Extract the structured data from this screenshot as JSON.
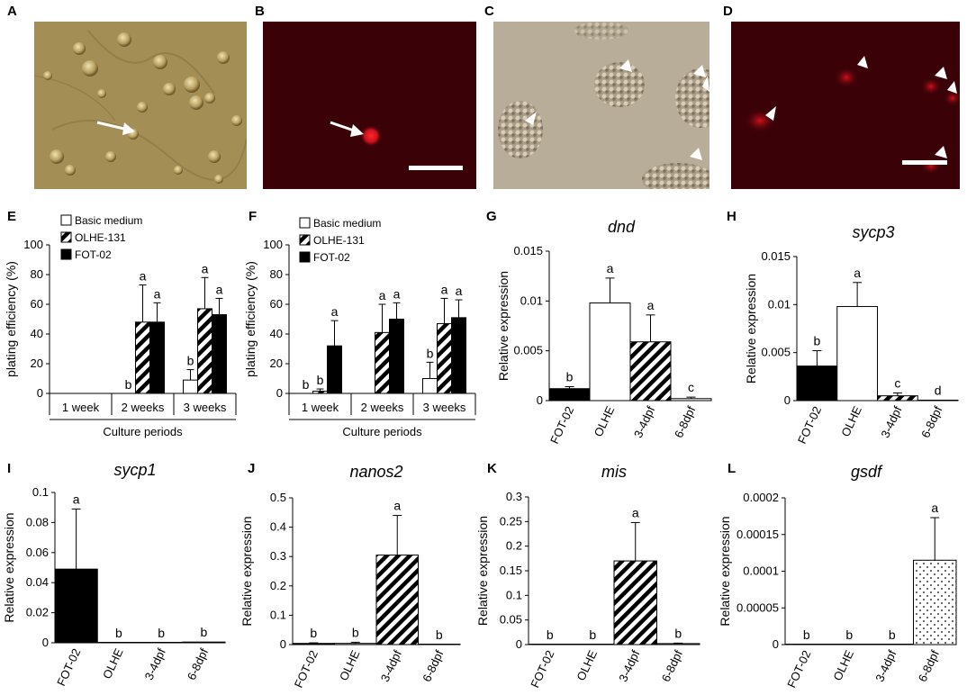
{
  "panels": {
    "A": "A",
    "B": "B",
    "C": "C",
    "D": "D",
    "E": "E",
    "F": "F",
    "G": "G",
    "H": "H",
    "I": "I",
    "J": "J",
    "K": "K",
    "L": "L"
  },
  "colors": {
    "micro_brightfield_A": "#a38f56",
    "micro_brightfield_C": "#b7ad98",
    "micro_dark": "#3a0207",
    "fluor_red": "#e0111b",
    "arrow_white": "#ffffff",
    "bar_black": "#000000",
    "bar_white": "#ffffff"
  },
  "chart_data": [
    {
      "panel": "E",
      "type": "bar",
      "ylabel": "plating efficiency (%)",
      "xlabel": "Culture periods",
      "ylim": [
        0,
        100
      ],
      "yticks": [
        "0",
        "20",
        "40",
        "60",
        "80",
        "100"
      ],
      "categories": [
        "1 week",
        "2 weeks",
        "3 weeks"
      ],
      "series": [
        {
          "name": "Basic medium",
          "style": "white",
          "values": [
            0,
            0,
            9
          ],
          "errors": [
            0,
            0,
            7
          ],
          "letters": [
            "",
            "b",
            "b"
          ]
        },
        {
          "name": "OLHE-131",
          "style": "hatch",
          "values": [
            0,
            48,
            57
          ],
          "errors": [
            0,
            25,
            21
          ],
          "letters": [
            "",
            "a",
            "a"
          ]
        },
        {
          "name": "FOT-02",
          "style": "black",
          "values": [
            0,
            48,
            53
          ],
          "errors": [
            0,
            13,
            11
          ],
          "letters": [
            "",
            "a",
            "a"
          ]
        }
      ]
    },
    {
      "panel": "F",
      "type": "bar",
      "ylabel": "plating efficiency (%)",
      "xlabel": "Culture periods",
      "ylim": [
        0,
        100
      ],
      "yticks": [
        "0",
        "20",
        "40",
        "60",
        "80",
        "100"
      ],
      "categories": [
        "1 week",
        "2 weeks",
        "3 weeks"
      ],
      "series": [
        {
          "name": "Basic medium",
          "style": "white",
          "values": [
            0,
            0,
            10
          ],
          "errors": [
            0,
            0,
            11
          ],
          "letters": [
            "b",
            "",
            "b"
          ]
        },
        {
          "name": "OLHE-131",
          "style": "hatch",
          "values": [
            1.5,
            41,
            47
          ],
          "errors": [
            1.5,
            19,
            17
          ],
          "letters": [
            "b",
            "a",
            "a"
          ]
        },
        {
          "name": "FOT-02",
          "style": "black",
          "values": [
            32,
            50,
            51
          ],
          "errors": [
            17,
            11,
            12
          ],
          "letters": [
            "a",
            "a",
            "a"
          ]
        }
      ]
    },
    {
      "panel": "G",
      "type": "bar",
      "title": "dnd",
      "ylabel": "Relative expression",
      "ylim": [
        0,
        0.015
      ],
      "yticks": [
        "0",
        "0.005",
        "0.01",
        "0.015"
      ],
      "categories": [
        "FOT-02",
        "OLHE",
        "3-4dpf",
        "6-8dpf"
      ],
      "styles": [
        "black",
        "white",
        "hatch",
        "white"
      ],
      "values": [
        0.0012,
        0.0098,
        0.0059,
        0.0002
      ],
      "errors": [
        0.0002,
        0.0025,
        0.0027,
        0.00015
      ],
      "letters": [
        "b",
        "a",
        "a",
        "c"
      ]
    },
    {
      "panel": "H",
      "type": "bar",
      "title": "sycp3",
      "ylabel": "Relative expression",
      "ylim": [
        0,
        0.015
      ],
      "yticks": [
        "0",
        "0.005",
        "0.01",
        "0.015"
      ],
      "categories": [
        "FOT-02",
        "OLHE",
        "3-4dpf",
        "6-8dpf"
      ],
      "styles": [
        "black",
        "white",
        "hatch",
        "white"
      ],
      "values": [
        0.0036,
        0.0098,
        0.0005,
        5e-05
      ],
      "errors": [
        0.0016,
        0.0025,
        0.0003,
        0
      ],
      "letters": [
        "b",
        "a",
        "c",
        "d"
      ]
    },
    {
      "panel": "I",
      "type": "bar",
      "title": "sycp1",
      "ylabel": "Relative expression",
      "ylim": [
        0,
        0.1
      ],
      "yticks": [
        "0",
        "0.02",
        "0.04",
        "0.06",
        "0.08",
        "0.1"
      ],
      "categories": [
        "FOT-02",
        "OLHE",
        "3-4dpf",
        "6-8dpf"
      ],
      "styles": [
        "black",
        "white",
        "hatch",
        "white"
      ],
      "values": [
        0.049,
        0.0001,
        0.0001,
        0.0005
      ],
      "errors": [
        0.04,
        0,
        0,
        0
      ],
      "letters": [
        "a",
        "b",
        "b",
        "b"
      ]
    },
    {
      "panel": "J",
      "type": "bar",
      "title": "nanos2",
      "ylabel": "Relative expression",
      "ylim": [
        0,
        0.5
      ],
      "yticks": [
        "0",
        "0.1",
        "0.2",
        "0.3",
        "0.4",
        "0.5"
      ],
      "categories": [
        "FOT-02",
        "OLHE",
        "3-4dpf",
        "6-8dpf"
      ],
      "styles": [
        "black",
        "white",
        "hatch",
        "white"
      ],
      "values": [
        0.004,
        0.004,
        0.305,
        0.0005
      ],
      "errors": [
        0.002,
        0.004,
        0.135,
        0
      ],
      "letters": [
        "b",
        "b",
        "a",
        "b"
      ]
    },
    {
      "panel": "K",
      "type": "bar",
      "title": "mis",
      "ylabel": "Relative expression",
      "ylim": [
        0,
        0.3
      ],
      "yticks": [
        "0",
        "0.05",
        "0.1",
        "0.15",
        "0.2",
        "0.25",
        "0.3"
      ],
      "categories": [
        "FOT-02",
        "OLHE",
        "3-4dpf",
        "6-8dpf"
      ],
      "styles": [
        "black",
        "white",
        "hatch",
        "white"
      ],
      "values": [
        0.0003,
        0.0003,
        0.17,
        0.002
      ],
      "errors": [
        0,
        0,
        0.078,
        0.001
      ],
      "letters": [
        "b",
        "b",
        "a",
        "b"
      ]
    },
    {
      "panel": "L",
      "type": "bar",
      "title": "gsdf",
      "ylabel": "Relative expression",
      "ylim": [
        0,
        0.0002
      ],
      "yticks": [
        "0",
        "0.00005",
        "0.0001",
        "0.00015",
        "0.0002"
      ],
      "categories": [
        "FOT-02",
        "OLHE",
        "3-4dpf",
        "6-8dpf"
      ],
      "styles": [
        "black",
        "white",
        "hatch",
        "dots"
      ],
      "values": [
        0,
        0,
        0,
        0.000115
      ],
      "errors": [
        0,
        0,
        0,
        5.8e-05
      ],
      "letters": [
        "b",
        "b",
        "b",
        "a"
      ]
    }
  ]
}
